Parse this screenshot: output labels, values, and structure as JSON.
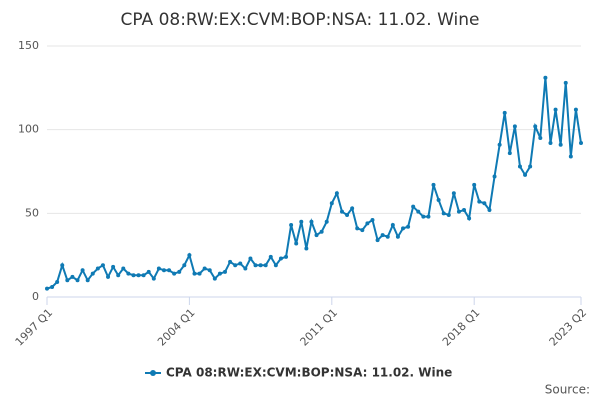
{
  "chart_data": {
    "type": "line",
    "title": "CPA 08:RW:EX:CVM:BOP:NSA: 11.02. Wine",
    "source": "Source:",
    "categories": [
      "1997 Q1",
      null,
      null,
      null,
      null,
      null,
      null,
      null,
      null,
      null,
      null,
      null,
      null,
      null,
      null,
      null,
      null,
      null,
      null,
      null,
      null,
      null,
      null,
      null,
      null,
      null,
      null,
      null,
      "2004 Q1",
      null,
      null,
      null,
      null,
      null,
      null,
      null,
      null,
      null,
      null,
      null,
      null,
      null,
      null,
      null,
      null,
      null,
      null,
      null,
      null,
      null,
      null,
      null,
      null,
      null,
      null,
      null,
      "2011 Q1",
      null,
      null,
      null,
      null,
      null,
      null,
      null,
      null,
      null,
      null,
      null,
      null,
      null,
      null,
      null,
      null,
      null,
      null,
      null,
      null,
      null,
      null,
      null,
      null,
      null,
      null,
      null,
      "2018 Q1",
      null,
      null,
      null,
      null,
      null,
      null,
      null,
      null,
      null,
      null,
      null,
      null,
      null,
      null,
      null,
      null,
      null,
      null,
      null,
      null,
      "2023 Q2"
    ],
    "series": [
      {
        "name": "CPA 08:RW:EX:CVM:BOP:NSA: 11.02. Wine",
        "color": "#0f7ab4",
        "values": [
          5,
          6,
          9,
          19,
          10,
          12,
          10,
          16,
          10,
          14,
          17,
          19,
          12,
          18,
          13,
          17,
          14,
          13,
          13,
          13,
          15,
          11,
          17,
          16,
          16,
          14,
          15,
          19,
          25,
          14,
          14,
          17,
          16,
          11,
          14,
          15,
          21,
          19,
          20,
          17,
          23,
          19,
          19,
          19,
          24,
          19,
          23,
          24,
          43,
          32,
          45,
          29,
          45,
          37,
          39,
          45,
          56,
          62,
          51,
          49,
          53,
          41,
          40,
          44,
          46,
          34,
          37,
          36,
          43,
          36,
          41,
          42,
          54,
          51,
          48,
          48,
          67,
          58,
          50,
          49,
          62,
          51,
          52,
          47,
          67,
          57,
          56,
          52,
          72,
          91,
          110,
          86,
          102,
          78,
          73,
          78,
          102,
          95,
          131,
          92,
          112,
          91,
          128,
          84,
          112,
          92
        ]
      }
    ],
    "ylim": [
      0,
      150
    ],
    "yticks": [
      0,
      50,
      100,
      150
    ],
    "grid": true
  }
}
